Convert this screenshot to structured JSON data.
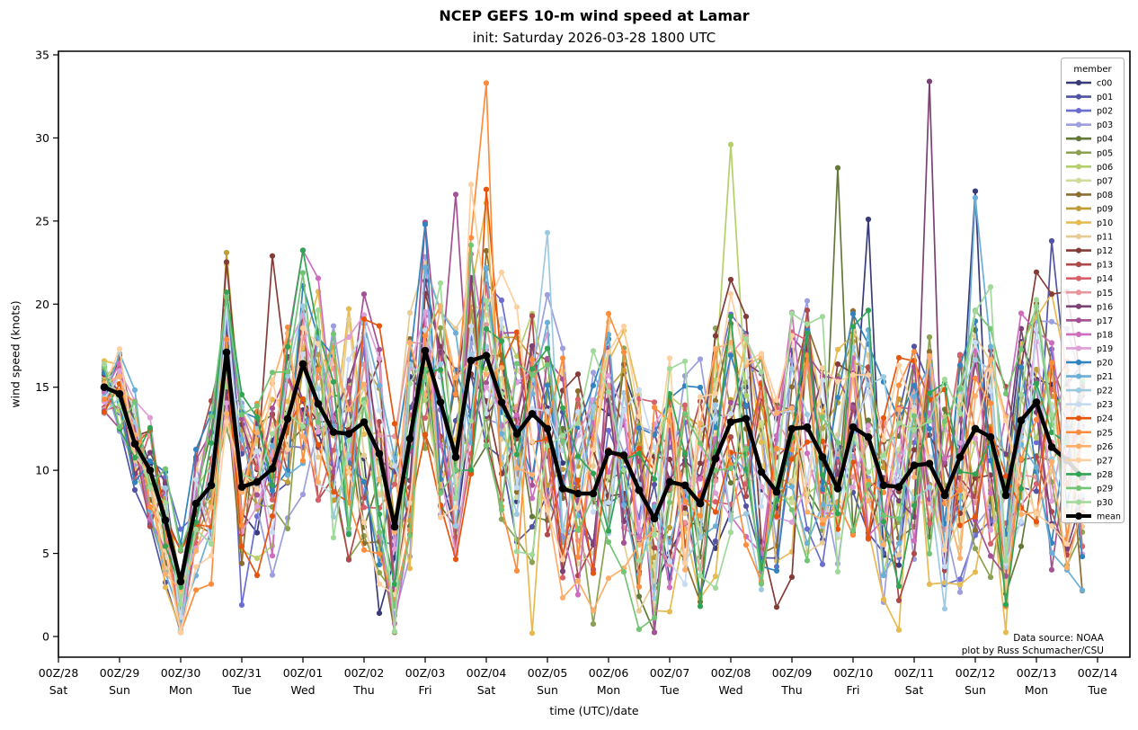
{
  "title": "NCEP GEFS 10-m wind speed at Lamar",
  "subtitle": "init: Saturday 2026-03-28 1800 UTC",
  "axes": {
    "xlabel": "time (UTC)/date",
    "ylabel": "wind speed (knots)"
  },
  "annotation": {
    "line1": "Data source: NOAA",
    "line2": "plot by Russ Schumacher/CSU"
  },
  "chart_data": {
    "type": "line",
    "title": "NCEP GEFS 10-m wind speed at Lamar",
    "subtitle": "init: Saturday 2026-03-28 1800 UTC",
    "xlabel": "time (UTC)/date",
    "ylabel": "wind speed (knots)",
    "ylim": [
      0,
      35
    ],
    "yticks": [
      0,
      5,
      10,
      15,
      20,
      25,
      30,
      35
    ],
    "grid": false,
    "legend_title": "member",
    "legend_position": "upper right inside",
    "xticks": [
      {
        "top": "00Z/28",
        "bottom": "Sat"
      },
      {
        "top": "00Z/29",
        "bottom": "Sun"
      },
      {
        "top": "00Z/30",
        "bottom": "Mon"
      },
      {
        "top": "00Z/31",
        "bottom": "Tue"
      },
      {
        "top": "00Z/01",
        "bottom": "Wed"
      },
      {
        "top": "00Z/02",
        "bottom": "Thu"
      },
      {
        "top": "00Z/03",
        "bottom": "Fri"
      },
      {
        "top": "00Z/04",
        "bottom": "Sat"
      },
      {
        "top": "00Z/05",
        "bottom": "Sun"
      },
      {
        "top": "00Z/06",
        "bottom": "Mon"
      },
      {
        "top": "00Z/07",
        "bottom": "Tue"
      },
      {
        "top": "00Z/08",
        "bottom": "Wed"
      },
      {
        "top": "00Z/09",
        "bottom": "Thu"
      },
      {
        "top": "00Z/10",
        "bottom": "Fri"
      },
      {
        "top": "00Z/11",
        "bottom": "Sat"
      },
      {
        "top": "00Z/12",
        "bottom": "Sun"
      },
      {
        "top": "00Z/13",
        "bottom": "Mon"
      },
      {
        "top": "00Z/14",
        "bottom": "Tue"
      }
    ],
    "time_axis": {
      "start_offset_days": 0.75,
      "step_days": 0.25,
      "n_points": 65,
      "first_point": "18Z/28",
      "last_point": "18Z/13"
    },
    "mean_series": {
      "name": "mean",
      "color": "#000000",
      "values": [
        15.0,
        14.6,
        11.6,
        10.0,
        7.0,
        3.3,
        8.0,
        9.1,
        17.1,
        9.0,
        9.3,
        10.1,
        13.1,
        16.4,
        14.0,
        12.3,
        12.2,
        12.9,
        11.0,
        6.6,
        11.9,
        17.2,
        14.1,
        10.8,
        16.6,
        16.9,
        14.1,
        12.2,
        13.4,
        12.5,
        8.9,
        8.6,
        8.6,
        11.1,
        10.9,
        8.8,
        7.1,
        9.3,
        9.1,
        8.0,
        10.7,
        12.9,
        13.1,
        9.9,
        8.7,
        12.5,
        12.6,
        10.8,
        8.9,
        12.6,
        12.0,
        9.1,
        9.0,
        10.3,
        10.4,
        8.5,
        10.8,
        12.5,
        12.0,
        8.5,
        13.0,
        14.1,
        11.4,
        10.6,
        9.6
      ]
    },
    "members": [
      {
        "name": "c00",
        "color": "#393b79",
        "seed": 7
      },
      {
        "name": "p01",
        "color": "#5254a3",
        "seed": 13
      },
      {
        "name": "p02",
        "color": "#6b6ecf",
        "seed": 21
      },
      {
        "name": "p03",
        "color": "#9c9ede",
        "seed": 34
      },
      {
        "name": "p04",
        "color": "#637939",
        "seed": 42
      },
      {
        "name": "p05",
        "color": "#8ca252",
        "seed": 55
      },
      {
        "name": "p06",
        "color": "#b5cf6b",
        "seed": 63
      },
      {
        "name": "p07",
        "color": "#cedb9c",
        "seed": 71
      },
      {
        "name": "p08",
        "color": "#8c6d31",
        "seed": 88
      },
      {
        "name": "p09",
        "color": "#bd9e39",
        "seed": 91
      },
      {
        "name": "p10",
        "color": "#e7ba52",
        "seed": 104
      },
      {
        "name": "p11",
        "color": "#e7cb94",
        "seed": 113
      },
      {
        "name": "p12",
        "color": "#843c39",
        "seed": 127
      },
      {
        "name": "p13",
        "color": "#ad494a",
        "seed": 135
      },
      {
        "name": "p14",
        "color": "#d6616b",
        "seed": 144
      },
      {
        "name": "p15",
        "color": "#e7969c",
        "seed": 158
      },
      {
        "name": "p16",
        "color": "#7b4173",
        "seed": 166
      },
      {
        "name": "p17",
        "color": "#a55194",
        "seed": 173
      },
      {
        "name": "p18",
        "color": "#ce6dbd",
        "seed": 181
      },
      {
        "name": "p19",
        "color": "#de9ed6",
        "seed": 197
      },
      {
        "name": "p20",
        "color": "#3182bd",
        "seed": 203
      },
      {
        "name": "p21",
        "color": "#6baed6",
        "seed": 214
      },
      {
        "name": "p22",
        "color": "#9ecae1",
        "seed": 225
      },
      {
        "name": "p23",
        "color": "#c6dbef",
        "seed": 233
      },
      {
        "name": "p24",
        "color": "#e6550d",
        "seed": 247
      },
      {
        "name": "p25",
        "color": "#fd8d3c",
        "seed": 251
      },
      {
        "name": "p26",
        "color": "#fdae6b",
        "seed": 262
      },
      {
        "name": "p27",
        "color": "#fdd0a2",
        "seed": 274
      },
      {
        "name": "p28",
        "color": "#31a354",
        "seed": 286
      },
      {
        "name": "p29",
        "color": "#74c476",
        "seed": 295
      },
      {
        "name": "p30",
        "color": "#a1d99b",
        "seed": 303
      }
    ],
    "visible_extremes": [
      {
        "member": "p10",
        "i": 5,
        "v": 0.4
      },
      {
        "member": "p09",
        "i": 8,
        "v": 23.1
      },
      {
        "member": "p10",
        "i": 8,
        "v": 22.4
      },
      {
        "member": "p02",
        "i": 9,
        "v": 1.9
      },
      {
        "member": "p12",
        "i": 11,
        "v": 22.9
      },
      {
        "member": "p20",
        "i": 13,
        "v": 21.1
      },
      {
        "member": "c00",
        "i": 18,
        "v": 1.4
      },
      {
        "member": "p30",
        "i": 19,
        "v": 0.3
      },
      {
        "member": "p20",
        "i": 21,
        "v": 24.8
      },
      {
        "member": "p17",
        "i": 23,
        "v": 26.6
      },
      {
        "member": "p27",
        "i": 24,
        "v": 27.2
      },
      {
        "member": "p25",
        "i": 25,
        "v": 33.3
      },
      {
        "member": "p24",
        "i": 25,
        "v": 26.9
      },
      {
        "member": "p10",
        "i": 28,
        "v": 0.2
      },
      {
        "member": "p22",
        "i": 29,
        "v": 24.3
      },
      {
        "member": "p06",
        "i": 41,
        "v": 29.6
      },
      {
        "member": "p04",
        "i": 48,
        "v": 28.2
      },
      {
        "member": "c00",
        "i": 50,
        "v": 25.1
      },
      {
        "member": "p16",
        "i": 54,
        "v": 33.4
      },
      {
        "member": "c00",
        "i": 57,
        "v": 26.8
      },
      {
        "member": "p21",
        "i": 57,
        "v": 26.4
      },
      {
        "member": "p01",
        "i": 62,
        "v": 23.8
      }
    ],
    "member_series_note": "31 ensemble member traces overlap densely (roughly 0-25 kt envelope around the mean); individual member values are not fully legible in the pixels, so member traces are reconstructed procedurally from seeds around mean_series, with the legible extreme points pinned in visible_extremes."
  }
}
